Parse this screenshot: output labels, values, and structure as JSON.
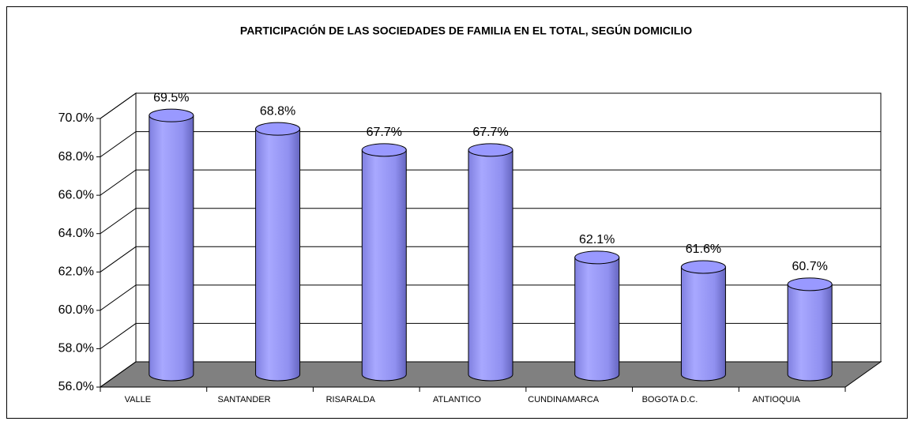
{
  "chart_data": {
    "type": "bar3d",
    "title": "PARTICIPACIÓN DE LAS SOCIEDADES DE FAMILIA EN EL TOTAL, SEGÚN DOMICILIO",
    "categories": [
      "VALLE",
      "SANTANDER",
      "RISARALDA",
      "ATLANTICO",
      "CUNDINAMARCA",
      "BOGOTA D.C.",
      "ANTIOQUIA"
    ],
    "values": [
      69.5,
      68.8,
      67.7,
      67.7,
      62.1,
      61.6,
      60.7
    ],
    "value_labels": [
      "69.5%",
      "68.8%",
      "67.7%",
      "67.7%",
      "62.1%",
      "61.6%",
      "60.7%"
    ],
    "color": "#9999ff",
    "ylim": [
      56,
      70
    ],
    "yticks": [
      {
        "value": 56,
        "label": "56.0%"
      },
      {
        "value": 58,
        "label": "58.0%"
      },
      {
        "value": 60,
        "label": "60.0%"
      },
      {
        "value": 62,
        "label": "62.0%"
      },
      {
        "value": 64,
        "label": "64.0%"
      },
      {
        "value": 66,
        "label": "66.0%"
      },
      {
        "value": 68,
        "label": "68.0%"
      },
      {
        "value": 70,
        "label": "70.0%"
      }
    ],
    "grid": true
  }
}
